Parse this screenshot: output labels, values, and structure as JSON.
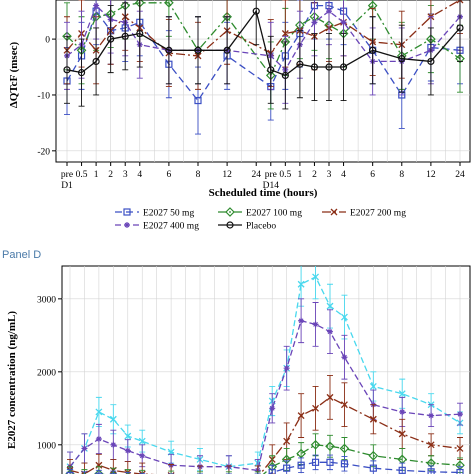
{
  "colors": {
    "e50": "#3b4fc4",
    "e100": "#2e8b2e",
    "e200": "#8b2e16",
    "e400": "#6a45b8",
    "placebo": "#111111",
    "cyan": "#48d8ee",
    "gridline": "#d4d4d4",
    "panel_label": "#4a7aa8"
  },
  "chart_data": [
    {
      "type": "line",
      "ylabel": "ΔQTcF (msec)",
      "xlabel": "Scheduled time (hours)",
      "ylim": [
        -22,
        7
      ],
      "yticks": [
        -20,
        -10,
        0
      ],
      "grid": true,
      "x_positions": [
        0,
        1,
        2,
        3,
        4,
        6,
        8,
        10,
        12,
        13,
        14,
        15,
        16,
        18,
        20,
        22
      ],
      "xtick_labels": [
        {
          "pos": 0,
          "line1": "pre",
          "line2": "D1"
        },
        {
          "pos": 1,
          "line1": "0.5",
          "line2": ""
        },
        {
          "pos": 2,
          "line1": "1",
          "line2": ""
        },
        {
          "pos": 3,
          "line1": "2",
          "line2": ""
        },
        {
          "pos": 4,
          "line1": "3",
          "line2": ""
        },
        {
          "pos": 5,
          "line1": "4",
          "line2": ""
        },
        {
          "pos": 7,
          "line1": "6",
          "line2": ""
        },
        {
          "pos": 9,
          "line1": "8",
          "line2": ""
        },
        {
          "pos": 11,
          "line1": "12",
          "line2": ""
        },
        {
          "pos": 13,
          "line1": "24",
          "line2": ""
        },
        {
          "pos": 14,
          "line1": "pre",
          "line2": "D14"
        },
        {
          "pos": 15,
          "line1": "0.5",
          "line2": ""
        },
        {
          "pos": 16,
          "line1": "1",
          "line2": ""
        },
        {
          "pos": 17,
          "line1": "2",
          "line2": ""
        },
        {
          "pos": 18,
          "line1": "3",
          "line2": ""
        },
        {
          "pos": 19,
          "line1": "4",
          "line2": ""
        },
        {
          "pos": 21,
          "line1": "6",
          "line2": ""
        },
        {
          "pos": 23,
          "line1": "8",
          "line2": ""
        },
        {
          "pos": 25,
          "line1": "12",
          "line2": ""
        },
        {
          "pos": 27,
          "line1": "24",
          "line2": ""
        }
      ],
      "series": [
        {
          "name": "E2027 50 mg",
          "color_key": "e50",
          "marker": "square",
          "dash": "7,4",
          "x": [
            0,
            1,
            2,
            3,
            4,
            5,
            7,
            9,
            11,
            14,
            15,
            16,
            17,
            18,
            19,
            21,
            23,
            25,
            27
          ],
          "y": [
            -7.5,
            -3,
            5,
            1.5,
            2,
            3,
            -4.5,
            -11,
            -3,
            -8.5,
            -3,
            1,
            6,
            6,
            5,
            -2,
            -10,
            -1.5,
            -2
          ],
          "err": [
            6,
            6,
            6,
            6,
            6,
            6,
            6,
            6,
            6,
            6,
            6,
            6,
            6,
            6,
            6,
            6,
            6,
            6,
            6
          ]
        },
        {
          "name": "E2027 100 mg",
          "color_key": "e100",
          "marker": "diamond",
          "dash": "8,3,2,3",
          "x": [
            0,
            1,
            2,
            3,
            4,
            5,
            7,
            9,
            11,
            14,
            15,
            16,
            17,
            18,
            19,
            21,
            23,
            25,
            27
          ],
          "y": [
            0.5,
            -2,
            4,
            4.5,
            6,
            6.5,
            6.5,
            -2,
            4,
            -6.5,
            -0.5,
            2.5,
            4,
            2.5,
            1,
            6,
            -3,
            0,
            -3.5
          ],
          "err": [
            6,
            6,
            6,
            6,
            6,
            6,
            6,
            6,
            6,
            6,
            6,
            6,
            6,
            6,
            6,
            6,
            6,
            6,
            6
          ]
        },
        {
          "name": "E2027 200 mg",
          "color_key": "e200",
          "marker": "x",
          "dash": "9,3,2,3",
          "x": [
            0,
            1,
            2,
            3,
            4,
            5,
            7,
            9,
            11,
            14,
            15,
            16,
            17,
            18,
            19,
            21,
            23,
            25,
            27
          ],
          "y": [
            -2,
            1,
            -2,
            1.5,
            4,
            2,
            -2.5,
            -3,
            1.5,
            -2.5,
            1,
            1.5,
            0.5,
            2,
            3,
            -0.5,
            -1,
            4,
            7
          ],
          "err": [
            6,
            6,
            6,
            6,
            6,
            6,
            6,
            6,
            6,
            6,
            6,
            6,
            6,
            6,
            6,
            6,
            6,
            6,
            6
          ]
        },
        {
          "name": "E2027 400 mg",
          "color_key": "e400",
          "marker": "star",
          "dash": "6,3",
          "x": [
            0,
            1,
            2,
            3,
            4,
            5,
            7,
            9,
            11,
            14,
            15,
            16,
            17,
            18,
            19,
            21,
            23,
            25,
            27
          ],
          "y": [
            -3,
            -1,
            6,
            3.5,
            3,
            -1,
            -2,
            -2,
            -2,
            -3,
            -5.5,
            -1,
            3,
            5,
            3,
            -4,
            -4,
            -2,
            4
          ],
          "err": [
            6,
            6,
            6,
            6,
            6,
            6,
            6,
            6,
            6,
            6,
            6,
            6,
            6,
            6,
            6,
            6,
            6,
            6,
            6
          ]
        },
        {
          "name": "Placebo",
          "color_key": "placebo",
          "marker": "circle",
          "dash": "",
          "x": [
            0,
            1,
            2,
            3,
            4,
            5,
            7,
            9,
            11,
            13,
            14,
            15,
            16,
            17,
            18,
            19,
            21,
            23,
            25,
            27
          ],
          "y": [
            -5.5,
            -6,
            -4,
            0,
            0.5,
            1,
            -2,
            -2,
            -2,
            5,
            -5.5,
            -6.5,
            -4.5,
            -5,
            -5,
            -5,
            -2,
            -3.5,
            -4,
            2
          ],
          "err": [
            6,
            6,
            6,
            6,
            6,
            6,
            6,
            6,
            6,
            6,
            6,
            6,
            6,
            6,
            6,
            6,
            6,
            6,
            6,
            6
          ]
        }
      ]
    },
    {
      "type": "line",
      "ylabel": "E2027 concentration (ng/mL)",
      "xlabel": "",
      "ylim": [
        600,
        3450
      ],
      "yticks": [
        1000,
        2000,
        3000
      ],
      "grid": true,
      "series": [
        {
          "name": "E2027 400 mg (cyan)",
          "color_key": "cyan",
          "marker": "x",
          "dash": "6,3",
          "x": [
            0,
            1,
            2,
            3,
            4,
            5,
            7,
            9,
            11,
            13,
            14,
            15,
            16,
            17,
            18,
            19,
            21,
            23,
            25,
            27
          ],
          "y": [
            700,
            950,
            1450,
            1350,
            1120,
            1050,
            900,
            800,
            700,
            750,
            1600,
            2050,
            3200,
            3300,
            2900,
            2750,
            1800,
            1700,
            1550,
            1300
          ],
          "err": [
            200,
            200,
            200,
            200,
            150,
            150,
            150,
            150,
            150,
            150,
            200,
            250,
            300,
            300,
            300,
            300,
            200,
            200,
            150,
            150
          ]
        },
        {
          "name": "E2027 400 mg",
          "color_key": "e400",
          "marker": "star",
          "dash": "6,3",
          "x": [
            0,
            1,
            2,
            3,
            4,
            5,
            7,
            9,
            11,
            13,
            14,
            15,
            16,
            17,
            18,
            19,
            21,
            23,
            25,
            27
          ],
          "y": [
            700,
            950,
            1080,
            1000,
            920,
            850,
            720,
            700,
            700,
            650,
            1500,
            2050,
            2700,
            2650,
            2550,
            2200,
            1550,
            1450,
            1400,
            1420
          ],
          "err": [
            200,
            200,
            200,
            200,
            150,
            150,
            150,
            150,
            150,
            150,
            200,
            300,
            300,
            300,
            300,
            300,
            200,
            200,
            150,
            150
          ]
        },
        {
          "name": "E2027 200 mg",
          "color_key": "e200",
          "marker": "x",
          "dash": "9,3,2,3",
          "x": [
            0,
            1,
            2,
            3,
            4,
            5,
            7,
            9,
            11,
            13,
            14,
            15,
            16,
            17,
            18,
            19,
            21,
            23,
            25,
            27
          ],
          "y": [
            650,
            600,
            720,
            650,
            620,
            600,
            580,
            560,
            560,
            560,
            800,
            1050,
            1400,
            1500,
            1650,
            1550,
            1350,
            1150,
            1000,
            950
          ],
          "err": [
            150,
            150,
            150,
            150,
            150,
            150,
            150,
            150,
            150,
            150,
            200,
            250,
            300,
            300,
            300,
            300,
            200,
            200,
            150,
            150
          ]
        },
        {
          "name": "E2027 100 mg",
          "color_key": "e100",
          "marker": "diamond",
          "dash": "8,3,2,3",
          "x": [
            0,
            1,
            2,
            3,
            4,
            5,
            7,
            9,
            11,
            13,
            14,
            15,
            16,
            17,
            18,
            19,
            21,
            23,
            25,
            27
          ],
          "y": [
            600,
            560,
            600,
            580,
            560,
            550,
            540,
            530,
            530,
            530,
            700,
            800,
            880,
            1000,
            980,
            950,
            850,
            800,
            750,
            720
          ],
          "err": [
            100,
            100,
            100,
            100,
            100,
            100,
            100,
            100,
            100,
            100,
            150,
            150,
            150,
            150,
            150,
            150,
            150,
            150,
            100,
            100
          ]
        },
        {
          "name": "E2027 50 mg",
          "color_key": "e50",
          "marker": "square",
          "dash": "7,4",
          "x": [
            0,
            1,
            2,
            3,
            4,
            5,
            7,
            9,
            11,
            13,
            14,
            15,
            16,
            17,
            18,
            19,
            21,
            23,
            25,
            27
          ],
          "y": [
            580,
            550,
            570,
            560,
            540,
            530,
            520,
            520,
            520,
            520,
            620,
            680,
            720,
            760,
            760,
            740,
            680,
            650,
            630,
            620
          ],
          "err": [
            80,
            80,
            80,
            80,
            80,
            80,
            80,
            80,
            80,
            80,
            100,
            100,
            100,
            100,
            100,
            100,
            100,
            100,
            80,
            80
          ]
        }
      ]
    }
  ],
  "legend": [
    {
      "label": "E2027 50 mg",
      "color_key": "e50",
      "marker": "square",
      "dash": "7,4"
    },
    {
      "label": "E2027 100 mg",
      "color_key": "e100",
      "marker": "diamond",
      "dash": "8,3,2,3"
    },
    {
      "label": "E2027 200 mg",
      "color_key": "e200",
      "marker": "x",
      "dash": "9,3,2,3"
    },
    {
      "label": "E2027 400 mg",
      "color_key": "e400",
      "marker": "star",
      "dash": "6,3"
    },
    {
      "label": "Placebo",
      "color_key": "placebo",
      "marker": "circle",
      "dash": ""
    }
  ],
  "panel_label": "Panel D"
}
